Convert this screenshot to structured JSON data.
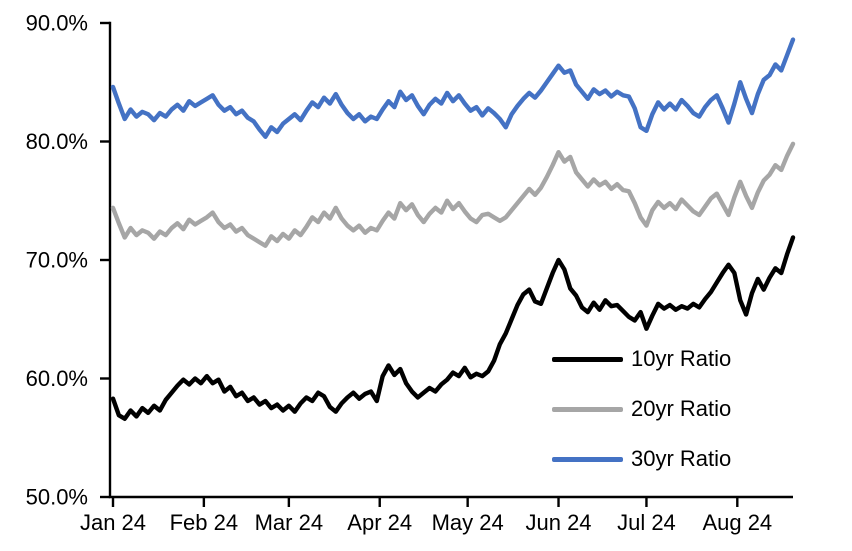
{
  "chart_data": {
    "type": "line",
    "title": "",
    "xlabel": "",
    "ylabel": "",
    "ylim": [
      50,
      90
    ],
    "grid": false,
    "legend_position": "inside-lower-right",
    "axis_color": "#000000",
    "y_ticks": [
      90,
      80,
      70,
      60,
      50
    ],
    "y_tick_labels": [
      "90.0%",
      "80.0%",
      "70.0%",
      "60.0%",
      "50.0%"
    ],
    "x_tick_labels": [
      "Jan 24",
      "Feb 24",
      "Mar 24",
      "Apr 24",
      "May 24",
      "Jun 24",
      "Jul 24",
      "Aug 24"
    ],
    "x_tick_days": [
      0,
      31,
      60,
      91,
      121,
      152,
      182,
      213
    ],
    "total_days": 232,
    "sample_interval_days": 2,
    "series": [
      {
        "name": "10yr Ratio",
        "color": "#000000",
        "values": [
          58.3,
          56.9,
          56.6,
          57.3,
          56.8,
          57.5,
          57.1,
          57.7,
          57.3,
          58.2,
          58.8,
          59.4,
          59.9,
          59.5,
          60.0,
          59.6,
          60.2,
          59.6,
          59.9,
          58.9,
          59.3,
          58.5,
          58.8,
          58.1,
          58.4,
          57.8,
          58.1,
          57.5,
          57.8,
          57.3,
          57.7,
          57.2,
          57.9,
          58.4,
          58.1,
          58.8,
          58.5,
          57.6,
          57.2,
          57.9,
          58.4,
          58.8,
          58.3,
          58.7,
          58.9,
          58.1,
          60.2,
          61.1,
          60.3,
          60.8,
          59.6,
          58.9,
          58.4,
          58.8,
          59.2,
          58.9,
          59.5,
          59.9,
          60.5,
          60.2,
          60.9,
          60.1,
          60.4,
          60.2,
          60.6,
          61.5,
          62.9,
          63.8,
          65.0,
          66.2,
          67.1,
          67.5,
          66.5,
          66.3,
          67.6,
          68.9,
          70.0,
          69.2,
          67.6,
          67.0,
          66.0,
          65.6,
          66.4,
          65.8,
          66.6,
          66.1,
          66.2,
          65.7,
          65.2,
          64.9,
          65.6,
          64.2,
          65.3,
          66.3,
          65.9,
          66.2,
          65.8,
          66.1,
          65.9,
          66.3,
          66.0,
          66.7,
          67.3,
          68.1,
          68.9,
          69.6,
          68.9,
          66.6,
          65.4,
          67.2,
          68.4,
          67.5,
          68.5,
          69.3,
          68.9,
          70.5,
          71.9
        ]
      },
      {
        "name": "20yr Ratio",
        "color": "#A6A6A6",
        "values": [
          74.4,
          73.1,
          71.9,
          72.7,
          72.1,
          72.5,
          72.3,
          71.8,
          72.4,
          72.1,
          72.7,
          73.1,
          72.6,
          73.4,
          73.0,
          73.3,
          73.6,
          74.0,
          73.2,
          72.7,
          73.0,
          72.4,
          72.7,
          72.1,
          71.8,
          71.5,
          71.2,
          72.0,
          71.6,
          72.2,
          71.8,
          72.5,
          72.1,
          72.8,
          73.6,
          73.2,
          74.0,
          73.5,
          74.4,
          73.5,
          72.9,
          72.5,
          72.9,
          72.3,
          72.7,
          72.5,
          73.3,
          74.0,
          73.5,
          74.8,
          74.2,
          74.7,
          73.8,
          73.2,
          73.9,
          74.4,
          74.0,
          75.0,
          74.3,
          74.8,
          74.1,
          73.5,
          73.2,
          73.8,
          73.9,
          73.6,
          73.3,
          73.6,
          74.2,
          74.8,
          75.4,
          76.0,
          75.5,
          76.1,
          77.0,
          78.0,
          79.1,
          78.3,
          78.7,
          77.4,
          76.8,
          76.2,
          76.8,
          76.3,
          76.6,
          76.0,
          76.4,
          75.9,
          75.8,
          74.8,
          73.6,
          72.9,
          74.2,
          74.9,
          74.4,
          74.8,
          74.3,
          75.1,
          74.6,
          74.1,
          73.8,
          74.5,
          75.2,
          75.6,
          74.7,
          73.8,
          75.3,
          76.6,
          75.4,
          74.4,
          75.7,
          76.7,
          77.2,
          78.0,
          77.6,
          78.8,
          79.8
        ]
      },
      {
        "name": "30yr Ratio",
        "color": "#4472C4",
        "values": [
          84.6,
          83.2,
          81.9,
          82.7,
          82.1,
          82.5,
          82.3,
          81.8,
          82.4,
          82.1,
          82.7,
          83.1,
          82.6,
          83.4,
          83.0,
          83.3,
          83.6,
          83.9,
          83.1,
          82.6,
          82.9,
          82.3,
          82.6,
          82.0,
          81.7,
          81.0,
          80.4,
          81.2,
          80.8,
          81.5,
          81.9,
          82.3,
          81.8,
          82.6,
          83.3,
          82.9,
          83.7,
          83.2,
          84.0,
          83.1,
          82.4,
          81.9,
          82.3,
          81.7,
          82.1,
          81.9,
          82.7,
          83.4,
          82.9,
          84.2,
          83.5,
          83.9,
          83.0,
          82.3,
          83.1,
          83.6,
          83.2,
          84.1,
          83.4,
          83.9,
          83.2,
          82.6,
          82.9,
          82.2,
          82.8,
          82.4,
          81.9,
          81.2,
          82.3,
          83.0,
          83.6,
          84.1,
          83.7,
          84.3,
          85.0,
          85.7,
          86.4,
          85.8,
          86.0,
          84.8,
          84.2,
          83.6,
          84.4,
          84.0,
          84.3,
          83.8,
          84.2,
          83.9,
          83.8,
          82.8,
          81.2,
          80.9,
          82.3,
          83.3,
          82.7,
          83.2,
          82.7,
          83.5,
          83.0,
          82.4,
          82.1,
          82.9,
          83.5,
          83.9,
          82.8,
          81.6,
          83.2,
          85.0,
          83.6,
          82.4,
          84.0,
          85.2,
          85.6,
          86.5,
          86.0,
          87.3,
          88.6
        ]
      }
    ]
  }
}
